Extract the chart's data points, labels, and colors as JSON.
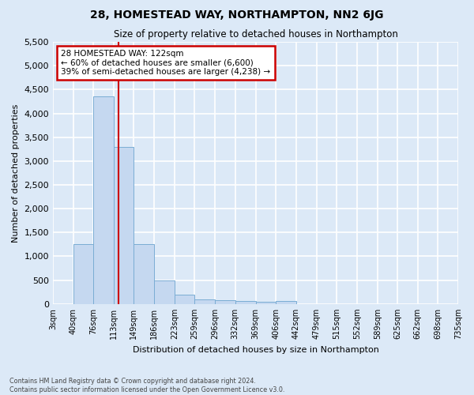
{
  "title": "28, HOMESTEAD WAY, NORTHAMPTON, NN2 6JG",
  "subtitle": "Size of property relative to detached houses in Northampton",
  "xlabel": "Distribution of detached houses by size in Northampton",
  "ylabel": "Number of detached properties",
  "footnote1": "Contains HM Land Registry data © Crown copyright and database right 2024.",
  "footnote2": "Contains public sector information licensed under the Open Government Licence v3.0.",
  "bin_edges": [
    3,
    40,
    76,
    113,
    149,
    186,
    223,
    259,
    296,
    332,
    369,
    406,
    442,
    479,
    515,
    552,
    589,
    625,
    662,
    698,
    735
  ],
  "bar_values": [
    0,
    1260,
    4350,
    3300,
    1260,
    490,
    200,
    95,
    80,
    55,
    45,
    55,
    0,
    0,
    0,
    0,
    0,
    0,
    0,
    0
  ],
  "tick_labels": [
    "3sqm",
    "40sqm",
    "76sqm",
    "113sqm",
    "149sqm",
    "186sqm",
    "223sqm",
    "259sqm",
    "296sqm",
    "332sqm",
    "369sqm",
    "406sqm",
    "442sqm",
    "479sqm",
    "515sqm",
    "552sqm",
    "589sqm",
    "625sqm",
    "662sqm",
    "698sqm",
    "735sqm"
  ],
  "bar_color": "#c5d8f0",
  "bar_edge_color": "#7aadd4",
  "vline_x": 122,
  "vline_color": "#cc0000",
  "ylim": [
    0,
    5500
  ],
  "yticks": [
    0,
    500,
    1000,
    1500,
    2000,
    2500,
    3000,
    3500,
    4000,
    4500,
    5000,
    5500
  ],
  "annotation_text": "28 HOMESTEAD WAY: 122sqm\n← 60% of detached houses are smaller (6,600)\n39% of semi-detached houses are larger (4,238) →",
  "annotation_box_facecolor": "#ffffff",
  "annotation_box_edgecolor": "#cc0000",
  "bg_color": "#dce9f7",
  "plot_bg_color": "#dce9f7",
  "grid_color": "#ffffff",
  "title_fontsize": 10,
  "subtitle_fontsize": 8.5
}
